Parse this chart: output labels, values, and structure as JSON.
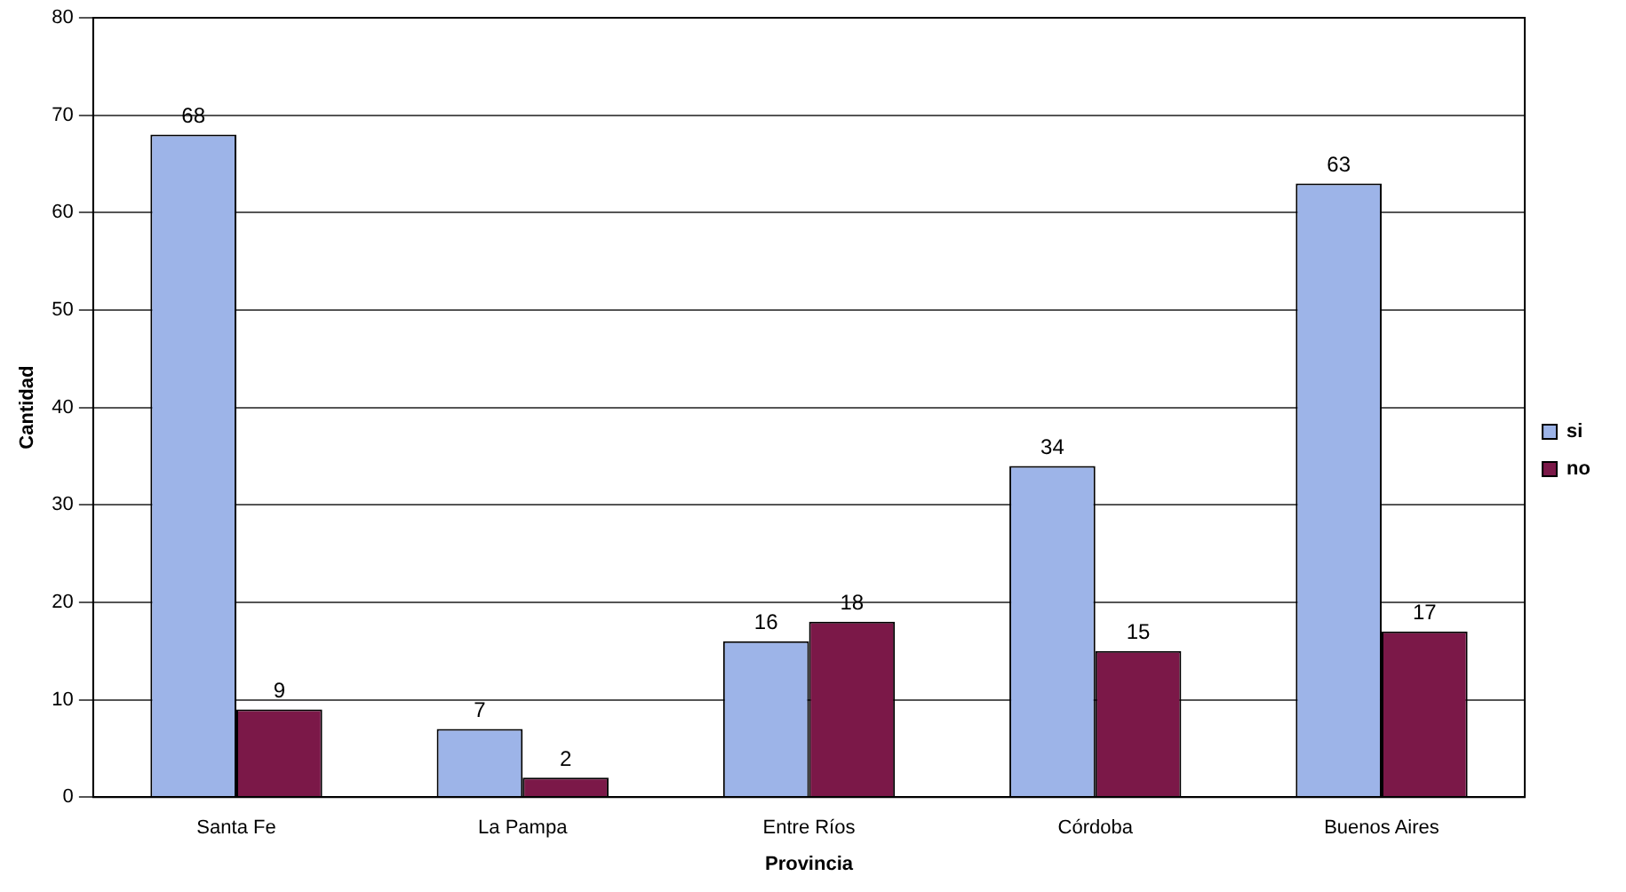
{
  "chart_data": {
    "type": "bar",
    "xlabel": "Provincia",
    "ylabel": "Cantidad",
    "categories": [
      "Santa Fe",
      "La Pampa",
      "Entre Ríos",
      "Córdoba",
      "Buenos Aires"
    ],
    "series": [
      {
        "name": "si",
        "color": "#9db4e8",
        "values": [
          68,
          7,
          16,
          34,
          63
        ]
      },
      {
        "name": "no",
        "color": "#7b1848",
        "values": [
          9,
          2,
          18,
          15,
          17
        ]
      }
    ],
    "ylim": [
      0,
      80
    ],
    "yticks": [
      0,
      10,
      20,
      30,
      40,
      50,
      60,
      70,
      80
    ],
    "grid": "y",
    "legend": "right",
    "data_labels": true
  }
}
